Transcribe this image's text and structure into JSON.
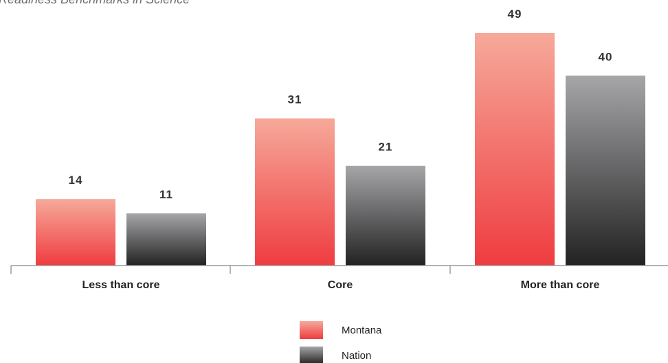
{
  "chart_data": {
    "type": "bar",
    "title": "Readiness Benchmarks in Science",
    "xlabel": "",
    "ylabel": "",
    "ylim": [
      0,
      50
    ],
    "grid": false,
    "legend_position": "bottom-center",
    "categories": [
      "Less than core",
      "Core",
      "More than core"
    ],
    "series": [
      {
        "name": "Montana",
        "values": [
          14,
          31,
          49
        ],
        "color_top": "#f6a99a",
        "color_bottom": "#ef3c40"
      },
      {
        "name": "Nation",
        "values": [
          11,
          21,
          40
        ],
        "color_top": "#a6a6a9",
        "color_bottom": "#222222"
      }
    ]
  }
}
